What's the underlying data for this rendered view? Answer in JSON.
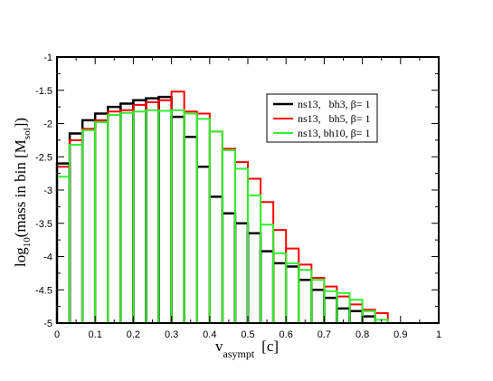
{
  "chart_data": {
    "type": "histogram",
    "xlabel": {
      "main": "v",
      "sub": "asympt",
      "unit": "[c]"
    },
    "ylabel": {
      "pre": "log",
      "pre_sub": "10",
      "main": "(mass in bin [M",
      "sub": "sol",
      "post": "])"
    },
    "xlim": [
      0,
      1
    ],
    "ylim": [
      -5,
      -1
    ],
    "xticks": [
      {
        "value": 0,
        "label": "0"
      },
      {
        "value": 0.1,
        "label": "0.1"
      },
      {
        "value": 0.2,
        "label": "0.2"
      },
      {
        "value": 0.3,
        "label": "0.3"
      },
      {
        "value": 0.4,
        "label": "0.4"
      },
      {
        "value": 0.5,
        "label": "0.5"
      },
      {
        "value": 0.6,
        "label": "0.6"
      },
      {
        "value": 0.7,
        "label": "0.7"
      },
      {
        "value": 0.8,
        "label": "0.8"
      },
      {
        "value": 0.9,
        "label": "0.9"
      },
      {
        "value": 1,
        "label": "1"
      }
    ],
    "yticks": [
      {
        "value": -5,
        "label": "-5"
      },
      {
        "value": -4.5,
        "label": "-4.5"
      },
      {
        "value": -4,
        "label": "-4"
      },
      {
        "value": -3.5,
        "label": "-3.5"
      },
      {
        "value": -3,
        "label": "-3"
      },
      {
        "value": -2.5,
        "label": "-2.5"
      },
      {
        "value": -2,
        "label": "-2"
      },
      {
        "value": -1.5,
        "label": "-1.5"
      },
      {
        "value": -1,
        "label": "-1"
      }
    ],
    "bin_edges": [
      0,
      0.0333,
      0.0667,
      0.1,
      0.1333,
      0.1667,
      0.2,
      0.2333,
      0.2667,
      0.3,
      0.3333,
      0.3667,
      0.4,
      0.4333,
      0.4667,
      0.5,
      0.5333,
      0.5667,
      0.6,
      0.6333,
      0.6667,
      0.7,
      0.7333,
      0.7667,
      0.8,
      0.8333,
      0.8667
    ],
    "legend_position": "top-right",
    "series": [
      {
        "name": "ns13,   bh3, β= 1",
        "color": "#000000",
        "values": [
          -2.6,
          -2.15,
          -1.95,
          -1.85,
          -1.75,
          -1.7,
          -1.65,
          -1.62,
          -1.6,
          -1.9,
          -2.2,
          -2.65,
          -3.1,
          -3.35,
          -3.5,
          -3.65,
          -3.92,
          -4.1,
          -4.15,
          -4.35,
          -4.5,
          -4.62,
          -4.78,
          -4.82,
          -4.9,
          null
        ]
      },
      {
        "name": "ns13,   bh5, β= 1",
        "color": "#ff0000",
        "values": [
          -2.65,
          -2.25,
          -2.08,
          -1.95,
          -1.82,
          -1.8,
          -1.72,
          -1.68,
          -1.65,
          -1.52,
          -1.82,
          -1.85,
          -2.12,
          -2.38,
          -2.58,
          -2.83,
          -3.18,
          -3.6,
          -3.88,
          -4.12,
          -4.32,
          -4.45,
          -4.6,
          -4.72,
          -4.8,
          -4.85
        ]
      },
      {
        "name": "ns13, bh10, β= 1",
        "color": "#33ee33",
        "values": [
          -2.8,
          -2.32,
          -2.1,
          -1.98,
          -1.87,
          -1.84,
          -1.82,
          -1.8,
          -1.81,
          -1.8,
          -1.85,
          -1.93,
          -2.12,
          -2.4,
          -2.68,
          -3.08,
          -3.52,
          -3.95,
          -4.1,
          -4.2,
          -4.35,
          -4.52,
          -4.55,
          -4.65,
          -4.82,
          -4.95
        ]
      }
    ]
  }
}
